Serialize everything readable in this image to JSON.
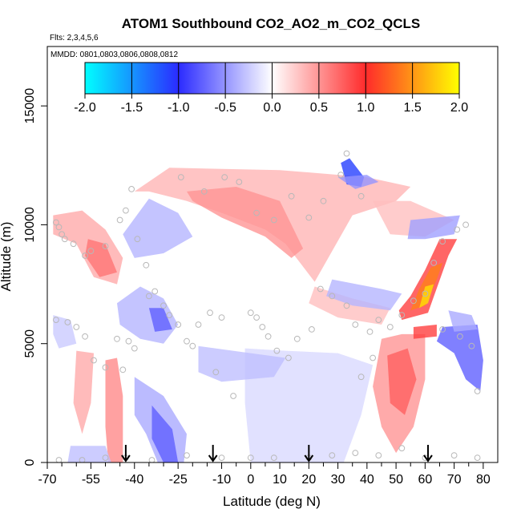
{
  "chart_data": {
    "type": "heatmap",
    "title": "ATOM1 Southbound CO2_AO2_m_CO2_QCLS",
    "subtitle_flights": "Flts: 2,3,4,5,6",
    "subtitle_dates": "MMDD: 0801,0803,0806,0808,0812",
    "xlabel": "Latitude (deg N)",
    "ylabel": "Altitude (m)",
    "xlim": [
      -70,
      85
    ],
    "ylim": [
      0,
      17500
    ],
    "x_ticks": [
      -70,
      -55,
      -40,
      -25,
      -10,
      0,
      10,
      20,
      30,
      40,
      50,
      60,
      70,
      80
    ],
    "x_tick_labels": [
      "-70",
      "-55",
      "-40",
      "-25",
      "-10",
      "0",
      "10",
      "20",
      "30",
      "40",
      "50",
      "60",
      "70",
      "80"
    ],
    "x_minor_ticks": [
      -65,
      -60,
      -50,
      -45,
      -35,
      -30,
      -20,
      -15,
      -5,
      5,
      15,
      25,
      35,
      45,
      55,
      65,
      75
    ],
    "y_ticks": [
      0,
      5000,
      10000,
      15000
    ],
    "y_tick_labels": [
      "0",
      "5000",
      "10000",
      "15000"
    ],
    "colorbar": {
      "min": -2.0,
      "max": 2.0,
      "ticks": [
        -2.0,
        -1.5,
        -1.0,
        -0.5,
        0.0,
        0.5,
        1.0,
        1.5,
        2.0
      ],
      "tick_labels": [
        "-2.0",
        "-1.5",
        "-1.0",
        "-0.5",
        "0.0",
        "0.5",
        "1.0",
        "1.5",
        "2.0"
      ],
      "colors": [
        "#00ffff",
        "#2b2bff",
        "#ffffff",
        "#ff2b2b",
        "#ffff00"
      ],
      "stops": [
        -2.0,
        -1.0,
        0.0,
        1.0,
        2.0
      ],
      "placement": "top inside plot"
    },
    "regions": [
      {
        "label": "upper-trop-positive",
        "value": 0.35,
        "polygon": [
          [
            -40,
            11400
          ],
          [
            -28,
            12400
          ],
          [
            10,
            12300
          ],
          [
            30,
            12100
          ],
          [
            40,
            12000
          ],
          [
            55,
            11600
          ],
          [
            50,
            11000
          ],
          [
            35,
            10400
          ],
          [
            22,
            7600
          ],
          [
            12,
            9200
          ],
          [
            5,
            9800
          ],
          [
            -10,
            10500
          ],
          [
            -22,
            11000
          ],
          [
            -35,
            11400
          ]
        ]
      },
      {
        "label": "upper-trop-positive-core",
        "value": 0.5,
        "polygon": [
          [
            -22,
            11400
          ],
          [
            -5,
            11600
          ],
          [
            10,
            11000
          ],
          [
            18,
            9000
          ],
          [
            14,
            8600
          ],
          [
            5,
            9500
          ],
          [
            -10,
            10300
          ],
          [
            -20,
            11000
          ]
        ]
      },
      {
        "label": "upper-right-positive",
        "value": 0.3,
        "polygon": [
          [
            42,
            11000
          ],
          [
            55,
            11000
          ],
          [
            70,
            10200
          ],
          [
            60,
            9500
          ],
          [
            48,
            9600
          ]
        ]
      },
      {
        "label": "sh-upper-positive",
        "value": 0.4,
        "polygon": [
          [
            -68,
            10400
          ],
          [
            -58,
            10600
          ],
          [
            -50,
            9800
          ],
          [
            -44,
            8600
          ],
          [
            -46,
            7500
          ],
          [
            -54,
            7800
          ],
          [
            -60,
            9200
          ],
          [
            -68,
            9600
          ]
        ]
      },
      {
        "label": "sh-upper-positive-core",
        "value": 0.65,
        "polygon": [
          [
            -56,
            9400
          ],
          [
            -50,
            9200
          ],
          [
            -46,
            8000
          ],
          [
            -52,
            7800
          ],
          [
            -57,
            8700
          ]
        ]
      },
      {
        "label": "sh-upper-negative",
        "value": -0.35,
        "polygon": [
          [
            -44,
            9600
          ],
          [
            -35,
            11100
          ],
          [
            -25,
            10500
          ],
          [
            -20,
            9500
          ],
          [
            -30,
            8800
          ],
          [
            -40,
            8600
          ]
        ]
      },
      {
        "label": "midlevel-negative-left",
        "value": -0.35,
        "polygon": [
          [
            -46,
            6700
          ],
          [
            -38,
            7400
          ],
          [
            -30,
            6900
          ],
          [
            -25,
            5800
          ],
          [
            -30,
            5000
          ],
          [
            -38,
            5200
          ],
          [
            -45,
            5800
          ]
        ]
      },
      {
        "label": "midlevel-negative-left-core",
        "value": -0.75,
        "polygon": [
          [
            -35,
            6500
          ],
          [
            -30,
            6500
          ],
          [
            -27,
            5600
          ],
          [
            -33,
            5500
          ]
        ]
      },
      {
        "label": "lower-trop-negative-wide",
        "value": -0.18,
        "polygon": [
          [
            -2,
            4800
          ],
          [
            12,
            4700
          ],
          [
            30,
            4600
          ],
          [
            42,
            4100
          ],
          [
            38,
            2000
          ],
          [
            32,
            0
          ],
          [
            12,
            0
          ],
          [
            0,
            0
          ],
          [
            -2,
            2500
          ]
        ]
      },
      {
        "label": "lower-negative-left",
        "value": -0.4,
        "polygon": [
          [
            -40,
            3600
          ],
          [
            -30,
            2800
          ],
          [
            -22,
            1200
          ],
          [
            -23,
            0
          ],
          [
            -32,
            0
          ],
          [
            -36,
            1200
          ],
          [
            -40,
            2000
          ]
        ]
      },
      {
        "label": "lower-negative-left-core",
        "value": -0.75,
        "polygon": [
          [
            -34,
            2400
          ],
          [
            -27,
            1400
          ],
          [
            -25,
            0
          ],
          [
            -30,
            0
          ],
          [
            -34,
            1000
          ]
        ]
      },
      {
        "label": "mid-negative-band",
        "value": -0.3,
        "polygon": [
          [
            -18,
            4900
          ],
          [
            0,
            4600
          ],
          [
            12,
            4400
          ],
          [
            8,
            3600
          ],
          [
            -10,
            3400
          ],
          [
            -18,
            3800
          ]
        ]
      },
      {
        "label": "sh-column-positive",
        "value": 0.55,
        "polygon": [
          [
            -50,
            4300
          ],
          [
            -46,
            4400
          ],
          [
            -44,
            2800
          ],
          [
            -44,
            0
          ],
          [
            -49,
            0
          ],
          [
            -50,
            1500
          ]
        ]
      },
      {
        "label": "sh-column-positive-left",
        "value": 0.4,
        "polygon": [
          [
            -60,
            4700
          ],
          [
            -54,
            4600
          ],
          [
            -55,
            2500
          ],
          [
            -58,
            1200
          ],
          [
            -61,
            2500
          ]
        ]
      },
      {
        "label": "nh-lower-positive",
        "value": 0.5,
        "polygon": [
          [
            45,
            5200
          ],
          [
            52,
            5400
          ],
          [
            60,
            5400
          ],
          [
            60,
            3500
          ],
          [
            56,
            1500
          ],
          [
            50,
            400
          ],
          [
            45,
            1500
          ],
          [
            42,
            3200
          ]
        ]
      },
      {
        "label": "nh-lower-positive-core",
        "value": 0.75,
        "polygon": [
          [
            47,
            4500
          ],
          [
            54,
            4800
          ],
          [
            57,
            3500
          ],
          [
            53,
            2000
          ],
          [
            48,
            2500
          ]
        ]
      },
      {
        "label": "nh-mid-positive-shallow",
        "value": 0.3,
        "polygon": [
          [
            22,
            7400
          ],
          [
            35,
            6900
          ],
          [
            48,
            6500
          ],
          [
            45,
            5800
          ],
          [
            30,
            6100
          ],
          [
            20,
            6700
          ]
        ]
      },
      {
        "label": "nh-mid-negative",
        "value": -0.35,
        "polygon": [
          [
            28,
            7700
          ],
          [
            45,
            7300
          ],
          [
            52,
            7100
          ],
          [
            48,
            6400
          ],
          [
            35,
            6600
          ],
          [
            26,
            7000
          ]
        ]
      },
      {
        "label": "nh-upper-negative",
        "value": -0.45,
        "polygon": [
          [
            55,
            10200
          ],
          [
            72,
            10400
          ],
          [
            70,
            9600
          ],
          [
            60,
            9400
          ],
          [
            54,
            9400
          ]
        ]
      },
      {
        "label": "nh-streak-positive",
        "value": 0.9,
        "polygon": [
          [
            52,
            6000
          ],
          [
            61,
            6300
          ],
          [
            68,
            8700
          ],
          [
            71,
            9400
          ],
          [
            65,
            9400
          ],
          [
            60,
            8100
          ],
          [
            55,
            7000
          ],
          [
            51,
            6400
          ]
        ]
      },
      {
        "label": "nh-streak-core",
        "value": 1.4,
        "polygon": [
          [
            55,
            6400
          ],
          [
            60,
            6600
          ],
          [
            64,
            7700
          ],
          [
            66,
            8400
          ],
          [
            62,
            8200
          ],
          [
            58,
            7300
          ]
        ]
      },
      {
        "label": "nh-streak-peak",
        "value": 1.85,
        "polygon": [
          [
            58,
            6500
          ],
          [
            61,
            6700
          ],
          [
            63,
            7500
          ],
          [
            60,
            7400
          ]
        ]
      },
      {
        "label": "nh-low-right-negative",
        "value": -0.75,
        "polygon": [
          [
            66,
            5700
          ],
          [
            78,
            5800
          ],
          [
            80,
            4300
          ],
          [
            79,
            3000
          ],
          [
            74,
            3500
          ],
          [
            70,
            4600
          ],
          [
            64,
            5100
          ]
        ]
      },
      {
        "label": "nh-right-negative-upper",
        "value": -0.4,
        "polygon": [
          [
            68,
            6400
          ],
          [
            76,
            6200
          ],
          [
            78,
            5600
          ],
          [
            70,
            5500
          ]
        ]
      },
      {
        "label": "nh-right-positive-stripe",
        "value": 0.9,
        "polygon": [
          [
            56,
            5700
          ],
          [
            64,
            5800
          ],
          [
            64,
            5300
          ],
          [
            56,
            5200
          ]
        ]
      },
      {
        "label": "upper-negative-patch",
        "value": -1.1,
        "polygon": [
          [
            31,
            12600
          ],
          [
            34,
            12800
          ],
          [
            39,
            12000
          ],
          [
            38,
            11600
          ],
          [
            33,
            11700
          ]
        ]
      },
      {
        "label": "upper-negative-patch-rim",
        "value": -0.5,
        "polygon": [
          [
            30,
            12000
          ],
          [
            40,
            12100
          ],
          [
            44,
            11800
          ],
          [
            36,
            11500
          ]
        ]
      },
      {
        "label": "sh-left-low-negative",
        "value": -0.25,
        "polygon": [
          [
            -68,
            6200
          ],
          [
            -62,
            6000
          ],
          [
            -60,
            5000
          ],
          [
            -66,
            4800
          ],
          [
            -68,
            5400
          ]
        ]
      },
      {
        "label": "sh-bottom-negative",
        "value": -0.3,
        "polygon": [
          [
            -62,
            700
          ],
          [
            -50,
            700
          ],
          [
            -48,
            0
          ],
          [
            -63,
            0
          ]
        ]
      }
    ],
    "samples": [
      [
        -67,
        10100
      ],
      [
        -66,
        9900
      ],
      [
        -65,
        9600
      ],
      [
        -64,
        9400
      ],
      [
        -61,
        9200
      ],
      [
        -57,
        8700
      ],
      [
        -55,
        8900
      ],
      [
        -50,
        9100
      ],
      [
        -45,
        10200
      ],
      [
        -43,
        10600
      ],
      [
        -41,
        11500
      ],
      [
        -39,
        9400
      ],
      [
        -36,
        8300
      ],
      [
        -33,
        7200
      ],
      [
        -30,
        6600
      ],
      [
        -28,
        6200
      ],
      [
        -25,
        5800
      ],
      [
        -22,
        5100
      ],
      [
        -20,
        4900
      ],
      [
        -18,
        5800
      ],
      [
        -14,
        6300
      ],
      [
        -10,
        6100
      ],
      [
        -67,
        6000
      ],
      [
        -63,
        5900
      ],
      [
        -60,
        5700
      ],
      [
        -57,
        5300
      ],
      [
        -54,
        4300
      ],
      [
        -50,
        4000
      ],
      [
        -46,
        5200
      ],
      [
        -42,
        5100
      ],
      [
        -40,
        4800
      ],
      [
        -35,
        7000
      ],
      [
        -24,
        12000
      ],
      [
        -16,
        11400
      ],
      [
        -9,
        12000
      ],
      [
        -4,
        11800
      ],
      [
        2,
        10500
      ],
      [
        8,
        10200
      ],
      [
        14,
        11200
      ],
      [
        20,
        10300
      ],
      [
        25,
        11000
      ],
      [
        31,
        12100
      ],
      [
        33,
        13000
      ],
      [
        38,
        11200
      ],
      [
        -12,
        3800
      ],
      [
        -6,
        2800
      ],
      [
        0,
        6300
      ],
      [
        2,
        6100
      ],
      [
        4,
        5700
      ],
      [
        6,
        5300
      ],
      [
        9,
        4700
      ],
      [
        13,
        4400
      ],
      [
        16,
        5200
      ],
      [
        21,
        5600
      ],
      [
        24,
        7300
      ],
      [
        28,
        7000
      ],
      [
        33,
        6600
      ],
      [
        36,
        5800
      ],
      [
        41,
        5500
      ],
      [
        44,
        6000
      ],
      [
        48,
        5700
      ],
      [
        52,
        6200
      ],
      [
        56,
        6800
      ],
      [
        60,
        7100
      ],
      [
        63,
        8400
      ],
      [
        66,
        9300
      ],
      [
        71,
        9800
      ],
      [
        74,
        10000
      ],
      [
        -66,
        100
      ],
      [
        -58,
        100
      ],
      [
        -50,
        200
      ],
      [
        -43,
        200
      ],
      [
        -34,
        100
      ],
      [
        -22,
        300
      ],
      [
        -10,
        200
      ],
      [
        0,
        200
      ],
      [
        8,
        200
      ],
      [
        20,
        200
      ],
      [
        28,
        300
      ],
      [
        36,
        400
      ],
      [
        44,
        300
      ],
      [
        52,
        600
      ],
      [
        60,
        200
      ],
      [
        70,
        300
      ],
      [
        78,
        200
      ],
      [
        78,
        3000
      ],
      [
        76,
        4900
      ],
      [
        72,
        5300
      ],
      [
        66,
        5600
      ],
      [
        42,
        4400
      ],
      [
        38,
        3600
      ],
      [
        -44,
        3900
      ]
    ],
    "flight_markers": [
      -43,
      -13,
      20,
      61
    ]
  }
}
